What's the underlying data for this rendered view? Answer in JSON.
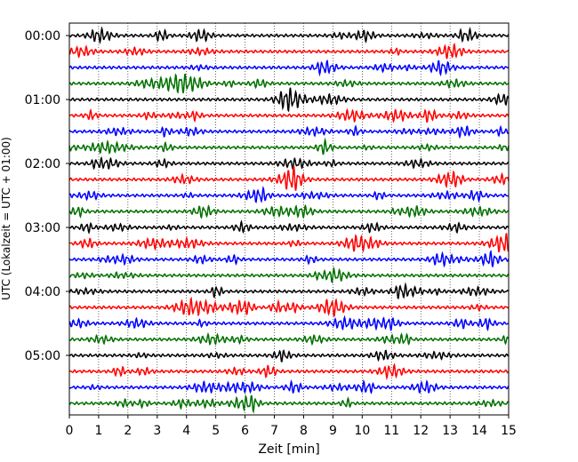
{
  "chart_data": {
    "type": "line",
    "title": "",
    "xlabel": "Zeit  [min]",
    "ylabel": "UTC (Lokalzeit = UTC + 01:00)",
    "xlim": [
      0,
      15
    ],
    "x_ticks": [
      "0",
      "1",
      "2",
      "3",
      "4",
      "5",
      "6",
      "7",
      "8",
      "9",
      "10",
      "11",
      "12",
      "13",
      "14",
      "15"
    ],
    "y_tick_labels": [
      "00:00",
      "01:00",
      "02:00",
      "03:00",
      "04:00",
      "05:00"
    ],
    "grid": true,
    "trace_interval_min": 15,
    "traces_per_hour": 4,
    "trace_count": 24,
    "trace_colors": [
      "#000000",
      "#ff0000",
      "#0000ff",
      "#007000"
    ]
  }
}
